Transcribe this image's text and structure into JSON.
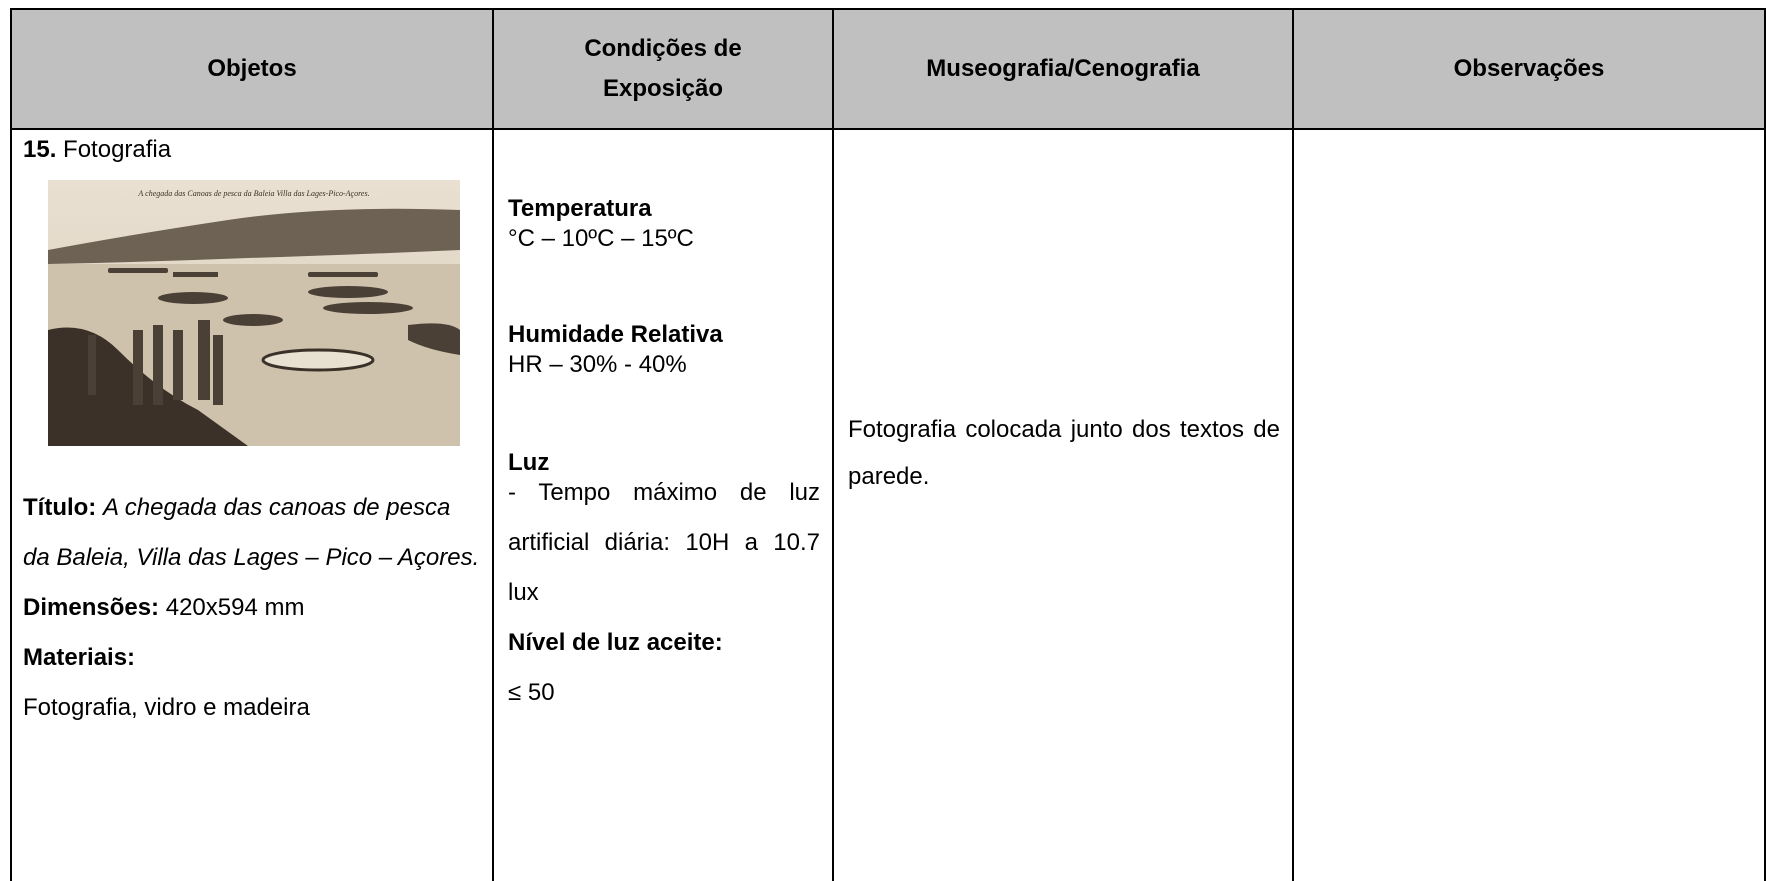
{
  "table": {
    "headers": [
      "Objetos",
      "Condições de Exposição",
      "Museografia/Cenografia",
      "Observações"
    ],
    "object": {
      "number": "15.",
      "type": "Fotografia",
      "photo_caption": "A chegada das Canoas de pesca da Baleia Villa das Lages-Pico-Açores.",
      "title_label": "Título:",
      "title": "A chegada das canoas de pesca da Baleia, Villa das  Lages – Pico – Açores.",
      "dimensions_label": "Dimensões:",
      "dimensions": "420x594 mm",
      "materials_label": "Materiais:",
      "materials": "Fotografia, vidro e madeira"
    },
    "conditions": {
      "temperature_label": "Temperatura",
      "temperature": "°C – 10ºC – 15ºC",
      "humidity_label": "Humidade Relativa",
      "humidity": "HR – 30% - 40%",
      "light_label": "Luz",
      "light": "- Tempo máximo de luz artificial diária: 10H a 10.7 lux",
      "accepted_label": "Nível de luz aceite:",
      "accepted": "≤ 50"
    },
    "museography": "Fotografia colocada junto dos textos de parede."
  }
}
